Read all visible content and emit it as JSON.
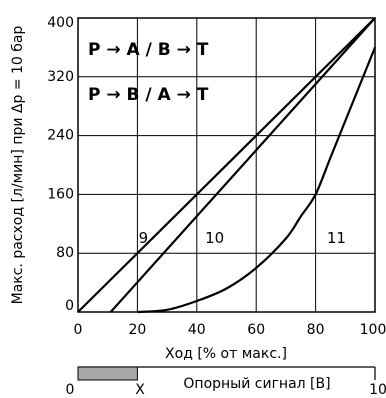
{
  "chart_data": {
    "type": "line",
    "title": "",
    "xlabel": "Ход [% от макс.]",
    "ylabel": "Макс. расход [л/мин] при Δp = 10 бар",
    "xlim": [
      0,
      100
    ],
    "ylim": [
      0,
      400
    ],
    "x_ticks": [
      "0",
      "20",
      "40",
      "60",
      "80",
      "100"
    ],
    "y_ticks": [
      "0",
      "80",
      "160",
      "240",
      "320",
      "400"
    ],
    "grid": true,
    "annotations": [
      "P → A / B → T",
      "P → B / A → T"
    ],
    "series": [
      {
        "name": "9",
        "x": [
          0,
          100
        ],
        "y": [
          0,
          400
        ]
      },
      {
        "name": "10",
        "x": [
          11,
          100
        ],
        "y": [
          0,
          400
        ]
      },
      {
        "name": "11",
        "x": [
          20,
          30,
          40,
          50,
          60,
          70,
          75,
          80,
          85,
          90,
          95,
          100
        ],
        "y": [
          0,
          3,
          15,
          32,
          60,
          100,
          130,
          160,
          210,
          260,
          310,
          360
        ]
      }
    ]
  },
  "signal_bar": {
    "label": "Опорный сигнал [В]",
    "min_label": "0",
    "marker_label": "X",
    "max_label": "10",
    "shaded_fraction": 0.2
  }
}
